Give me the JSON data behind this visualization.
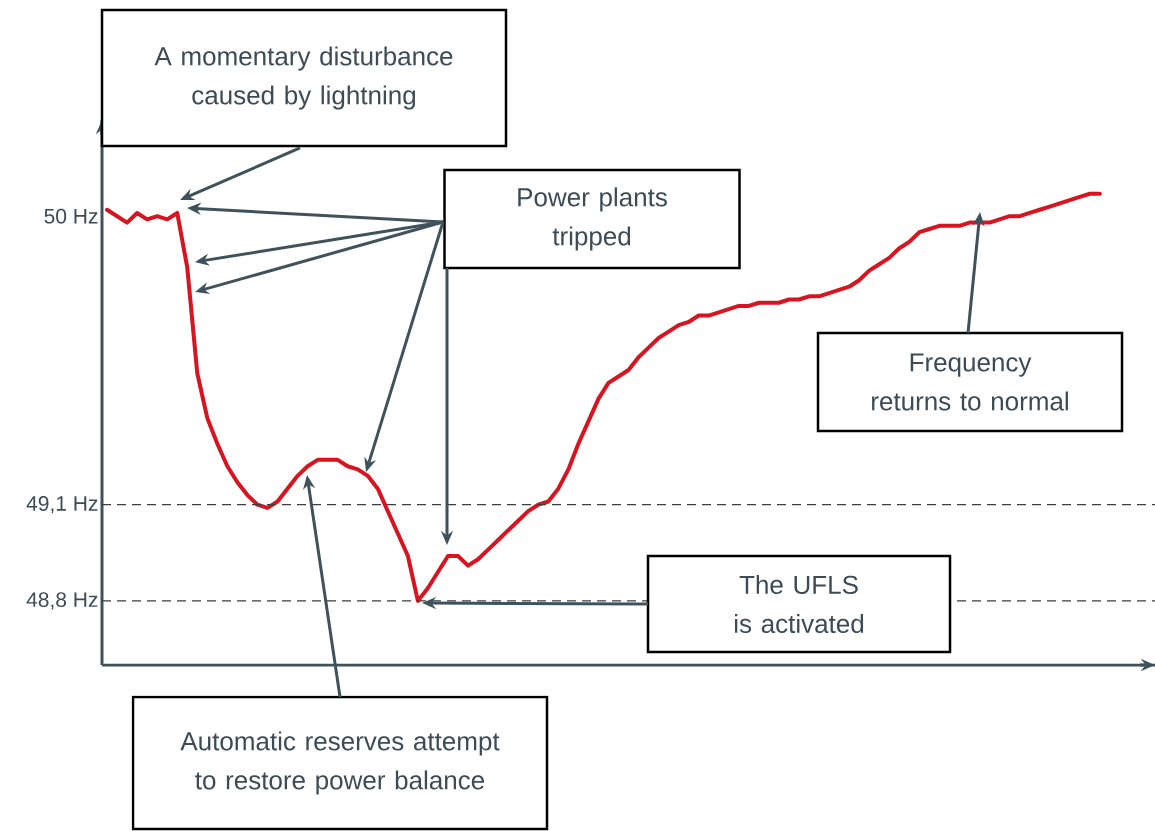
{
  "chart_data": {
    "type": "line",
    "categories": [
      null,
      null,
      null,
      null,
      null,
      null,
      null,
      null,
      null,
      null,
      null,
      null,
      null,
      null,
      null,
      null,
      null,
      null,
      null,
      null,
      null,
      null,
      null,
      null,
      null,
      null,
      null,
      null,
      null,
      null,
      null,
      null,
      null,
      null,
      null,
      null,
      null,
      null,
      null,
      null,
      null,
      null,
      null,
      null,
      null,
      null,
      null,
      null,
      null,
      null,
      null,
      null,
      null,
      null,
      null,
      null,
      null,
      null,
      null,
      null,
      null,
      null,
      null,
      null,
      null,
      null,
      null,
      null,
      null,
      null,
      null,
      null,
      null,
      null,
      null,
      null,
      null,
      null,
      null,
      null,
      null,
      null,
      null,
      null,
      null,
      null,
      null,
      null,
      null,
      null,
      null,
      null,
      null,
      null,
      null,
      null,
      null,
      null,
      null,
      null,
      null,
      null,
      null,
      null,
      null
    ],
    "values": [
      50.02,
      50.0,
      49.98,
      50.01,
      49.99,
      50.0,
      49.99,
      50.01,
      49.84,
      49.51,
      49.37,
      49.29,
      49.22,
      49.17,
      49.13,
      49.1,
      49.09,
      49.11,
      49.15,
      49.19,
      49.22,
      49.24,
      49.24,
      49.24,
      49.22,
      49.21,
      49.19,
      49.15,
      49.08,
      49.01,
      48.94,
      48.8,
      48.84,
      48.89,
      48.94,
      48.94,
      48.91,
      48.93,
      48.96,
      48.99,
      49.02,
      49.05,
      49.08,
      49.1,
      49.11,
      49.15,
      49.21,
      49.29,
      49.36,
      49.43,
      49.48,
      49.5,
      49.52,
      49.56,
      49.59,
      49.62,
      49.64,
      49.66,
      49.67,
      49.69,
      49.69,
      49.7,
      49.71,
      49.72,
      49.72,
      49.73,
      49.73,
      49.73,
      49.74,
      49.74,
      49.75,
      49.75,
      49.76,
      49.77,
      49.78,
      49.8,
      49.83,
      49.85,
      49.87,
      49.9,
      49.92,
      49.95,
      49.96,
      49.97,
      49.97,
      49.97,
      49.98,
      49.98,
      49.98,
      49.99,
      50.0,
      50.0,
      50.01,
      50.02,
      50.03,
      50.04,
      50.05,
      50.06,
      50.07,
      50.07,
      null,
      null,
      null,
      null,
      null
    ],
    "color": "#d7141f",
    "ylim": [
      48.6,
      50.3
    ],
    "yticks": [
      {
        "value": 50,
        "label": "50 Hz"
      },
      {
        "value": 49.1,
        "label": "49,1 Hz"
      },
      {
        "value": 48.8,
        "label": "48,8 Hz"
      }
    ],
    "tick_labels": "y",
    "ref_lines": [
      {
        "axis": "y",
        "value": 49.1,
        "color": "#3d3d3d",
        "line_style": "dashed"
      },
      {
        "axis": "y",
        "value": 48.8,
        "color": "#3d3d3d",
        "line_style": "dashed"
      }
    ],
    "annotations": [
      "A momentary disturbance caused by lightning",
      "Power plants tripped",
      "Frequency returns to normal",
      "The UFLS is activated",
      "Automatic reserves attempt to restore power balance"
    ]
  }
}
